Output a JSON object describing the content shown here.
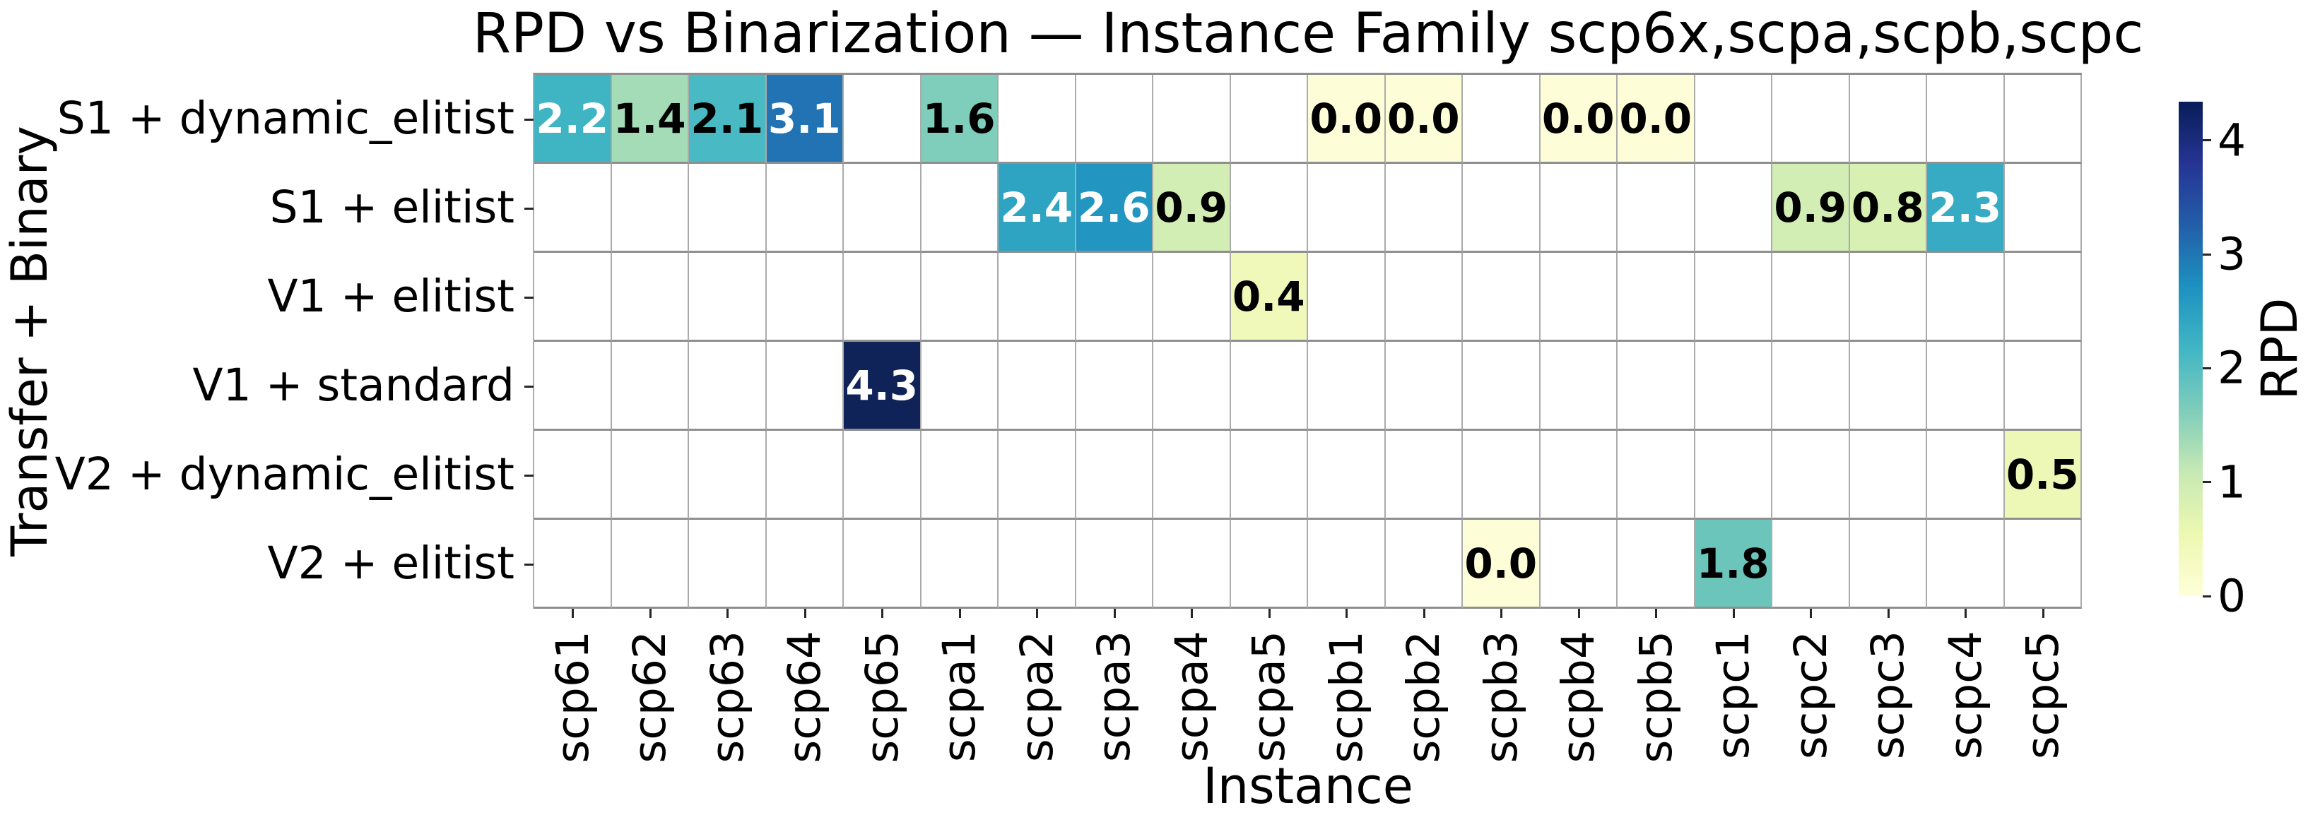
{
  "chart_data": {
    "type": "heatmap",
    "title": "RPD vs Binarization — Instance Family scp6x,scpa,scpb,scpc",
    "xlabel": "Instance",
    "ylabel": "Transfer + Binary",
    "grid": true,
    "rows": [
      "S1 + dynamic_elitist",
      "S1 + elitist",
      "V1 + elitist",
      "V1 + standard",
      "V2 + dynamic_elitist",
      "V2 + elitist"
    ],
    "columns": [
      "scp61",
      "scp62",
      "scp63",
      "scp64",
      "scp65",
      "scpa1",
      "scpa2",
      "scpa3",
      "scpa4",
      "scpa5",
      "scpb1",
      "scpb2",
      "scpb3",
      "scpb4",
      "scpb5",
      "scpc1",
      "scpc2",
      "scpc3",
      "scpc4",
      "scpc5"
    ],
    "empty_cell_color": "#ffffff",
    "cells": [
      {
        "r": 0,
        "c": 0,
        "v": "2.2",
        "bg": "#3fb5c4",
        "fg": "#ffffff"
      },
      {
        "r": 0,
        "c": 1,
        "v": "1.4",
        "bg": "#a3dcb6",
        "fg": "#000000"
      },
      {
        "r": 0,
        "c": 2,
        "v": "2.1",
        "bg": "#49bac3",
        "fg": "#000000"
      },
      {
        "r": 0,
        "c": 3,
        "v": "3.1",
        "bg": "#2173b4",
        "fg": "#ffffff"
      },
      {
        "r": 0,
        "c": 5,
        "v": "1.6",
        "bg": "#7fcebb",
        "fg": "#000000"
      },
      {
        "r": 0,
        "c": 10,
        "v": "0.0",
        "bg": "#fdfdd7",
        "fg": "#000000"
      },
      {
        "r": 0,
        "c": 11,
        "v": "0.0",
        "bg": "#fdfdd7",
        "fg": "#000000"
      },
      {
        "r": 0,
        "c": 13,
        "v": "0.0",
        "bg": "#fdfdd7",
        "fg": "#000000"
      },
      {
        "r": 0,
        "c": 14,
        "v": "0.0",
        "bg": "#fdfdd7",
        "fg": "#000000"
      },
      {
        "r": 1,
        "c": 6,
        "v": "2.4",
        "bg": "#2fa4c2",
        "fg": "#ffffff"
      },
      {
        "r": 1,
        "c": 7,
        "v": "2.6",
        "bg": "#2295c0",
        "fg": "#ffffff"
      },
      {
        "r": 1,
        "c": 8,
        "v": "0.9",
        "bg": "#d2eeb4",
        "fg": "#000000"
      },
      {
        "r": 1,
        "c": 16,
        "v": "0.9",
        "bg": "#d2eeb4",
        "fg": "#000000"
      },
      {
        "r": 1,
        "c": 17,
        "v": "0.8",
        "bg": "#d9f0b3",
        "fg": "#000000"
      },
      {
        "r": 1,
        "c": 18,
        "v": "2.3",
        "bg": "#37abc3",
        "fg": "#ffffff"
      },
      {
        "r": 2,
        "c": 9,
        "v": "0.4",
        "bg": "#f0f9ba",
        "fg": "#000000"
      },
      {
        "r": 3,
        "c": 4,
        "v": "4.3",
        "bg": "#102358",
        "fg": "#ffffff"
      },
      {
        "r": 4,
        "c": 19,
        "v": "0.5",
        "bg": "#edf8b6",
        "fg": "#000000"
      },
      {
        "r": 5,
        "c": 12,
        "v": "0.0",
        "bg": "#fdfdd7",
        "fg": "#000000"
      },
      {
        "r": 5,
        "c": 15,
        "v": "1.8",
        "bg": "#6cc5ba",
        "fg": "#000000"
      }
    ],
    "colorbar": {
      "label": "RPD",
      "ticks": [
        0,
        1,
        2,
        3,
        4
      ],
      "vmin": 0,
      "vmax": 4.34,
      "colormap": "YlGnBu",
      "gradient_bottom_to_top": [
        "#ffffd9",
        "#edf8b1",
        "#c7e9b4",
        "#7fcdbb",
        "#41b6c4",
        "#1d91c0",
        "#225ea8",
        "#253494",
        "#081d58"
      ]
    }
  }
}
